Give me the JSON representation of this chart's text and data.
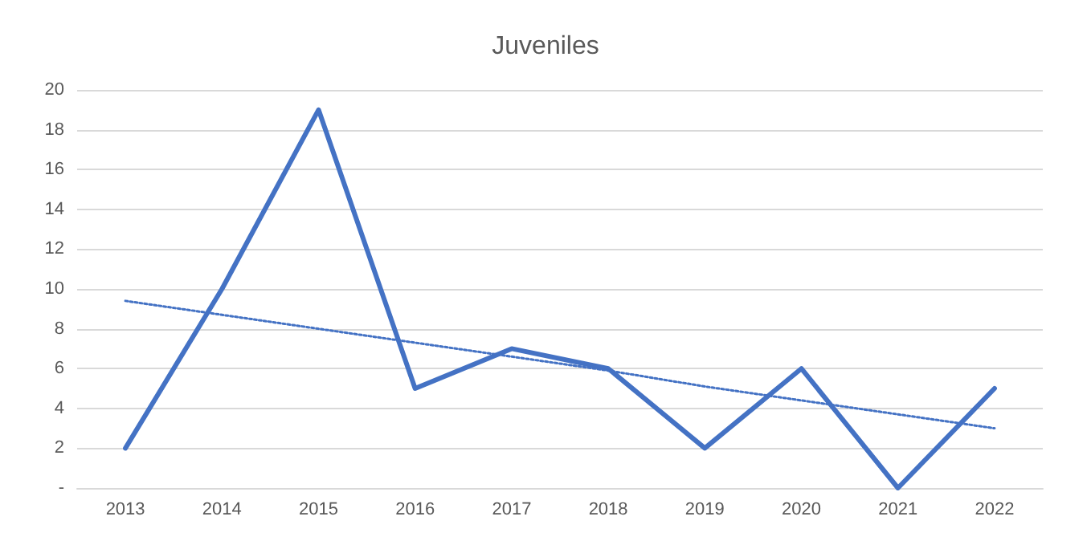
{
  "chart_data": {
    "type": "line",
    "title": "Juveniles",
    "categories": [
      "2013",
      "2014",
      "2015",
      "2016",
      "2017",
      "2018",
      "2019",
      "2020",
      "2021",
      "2022"
    ],
    "series": [
      {
        "color": "#4472c4",
        "values": [
          2,
          10,
          19,
          5,
          7,
          6,
          2,
          6,
          0,
          5
        ],
        "line_style": "solid"
      },
      {
        "type": "line",
        "color": "#4472c4",
        "values": [
          9.4,
          8.7,
          8.0,
          7.3,
          6.6,
          5.9,
          5.1,
          4.4,
          3.7,
          3.0
        ],
        "line_style": "dotted"
      }
    ],
    "ylim": [
      0,
      20
    ],
    "yticks": [
      {
        "value": 0,
        "label": "-"
      },
      2,
      4,
      6,
      8,
      10,
      12,
      14,
      16,
      18,
      20
    ],
    "grid": "y",
    "marker": "none"
  }
}
